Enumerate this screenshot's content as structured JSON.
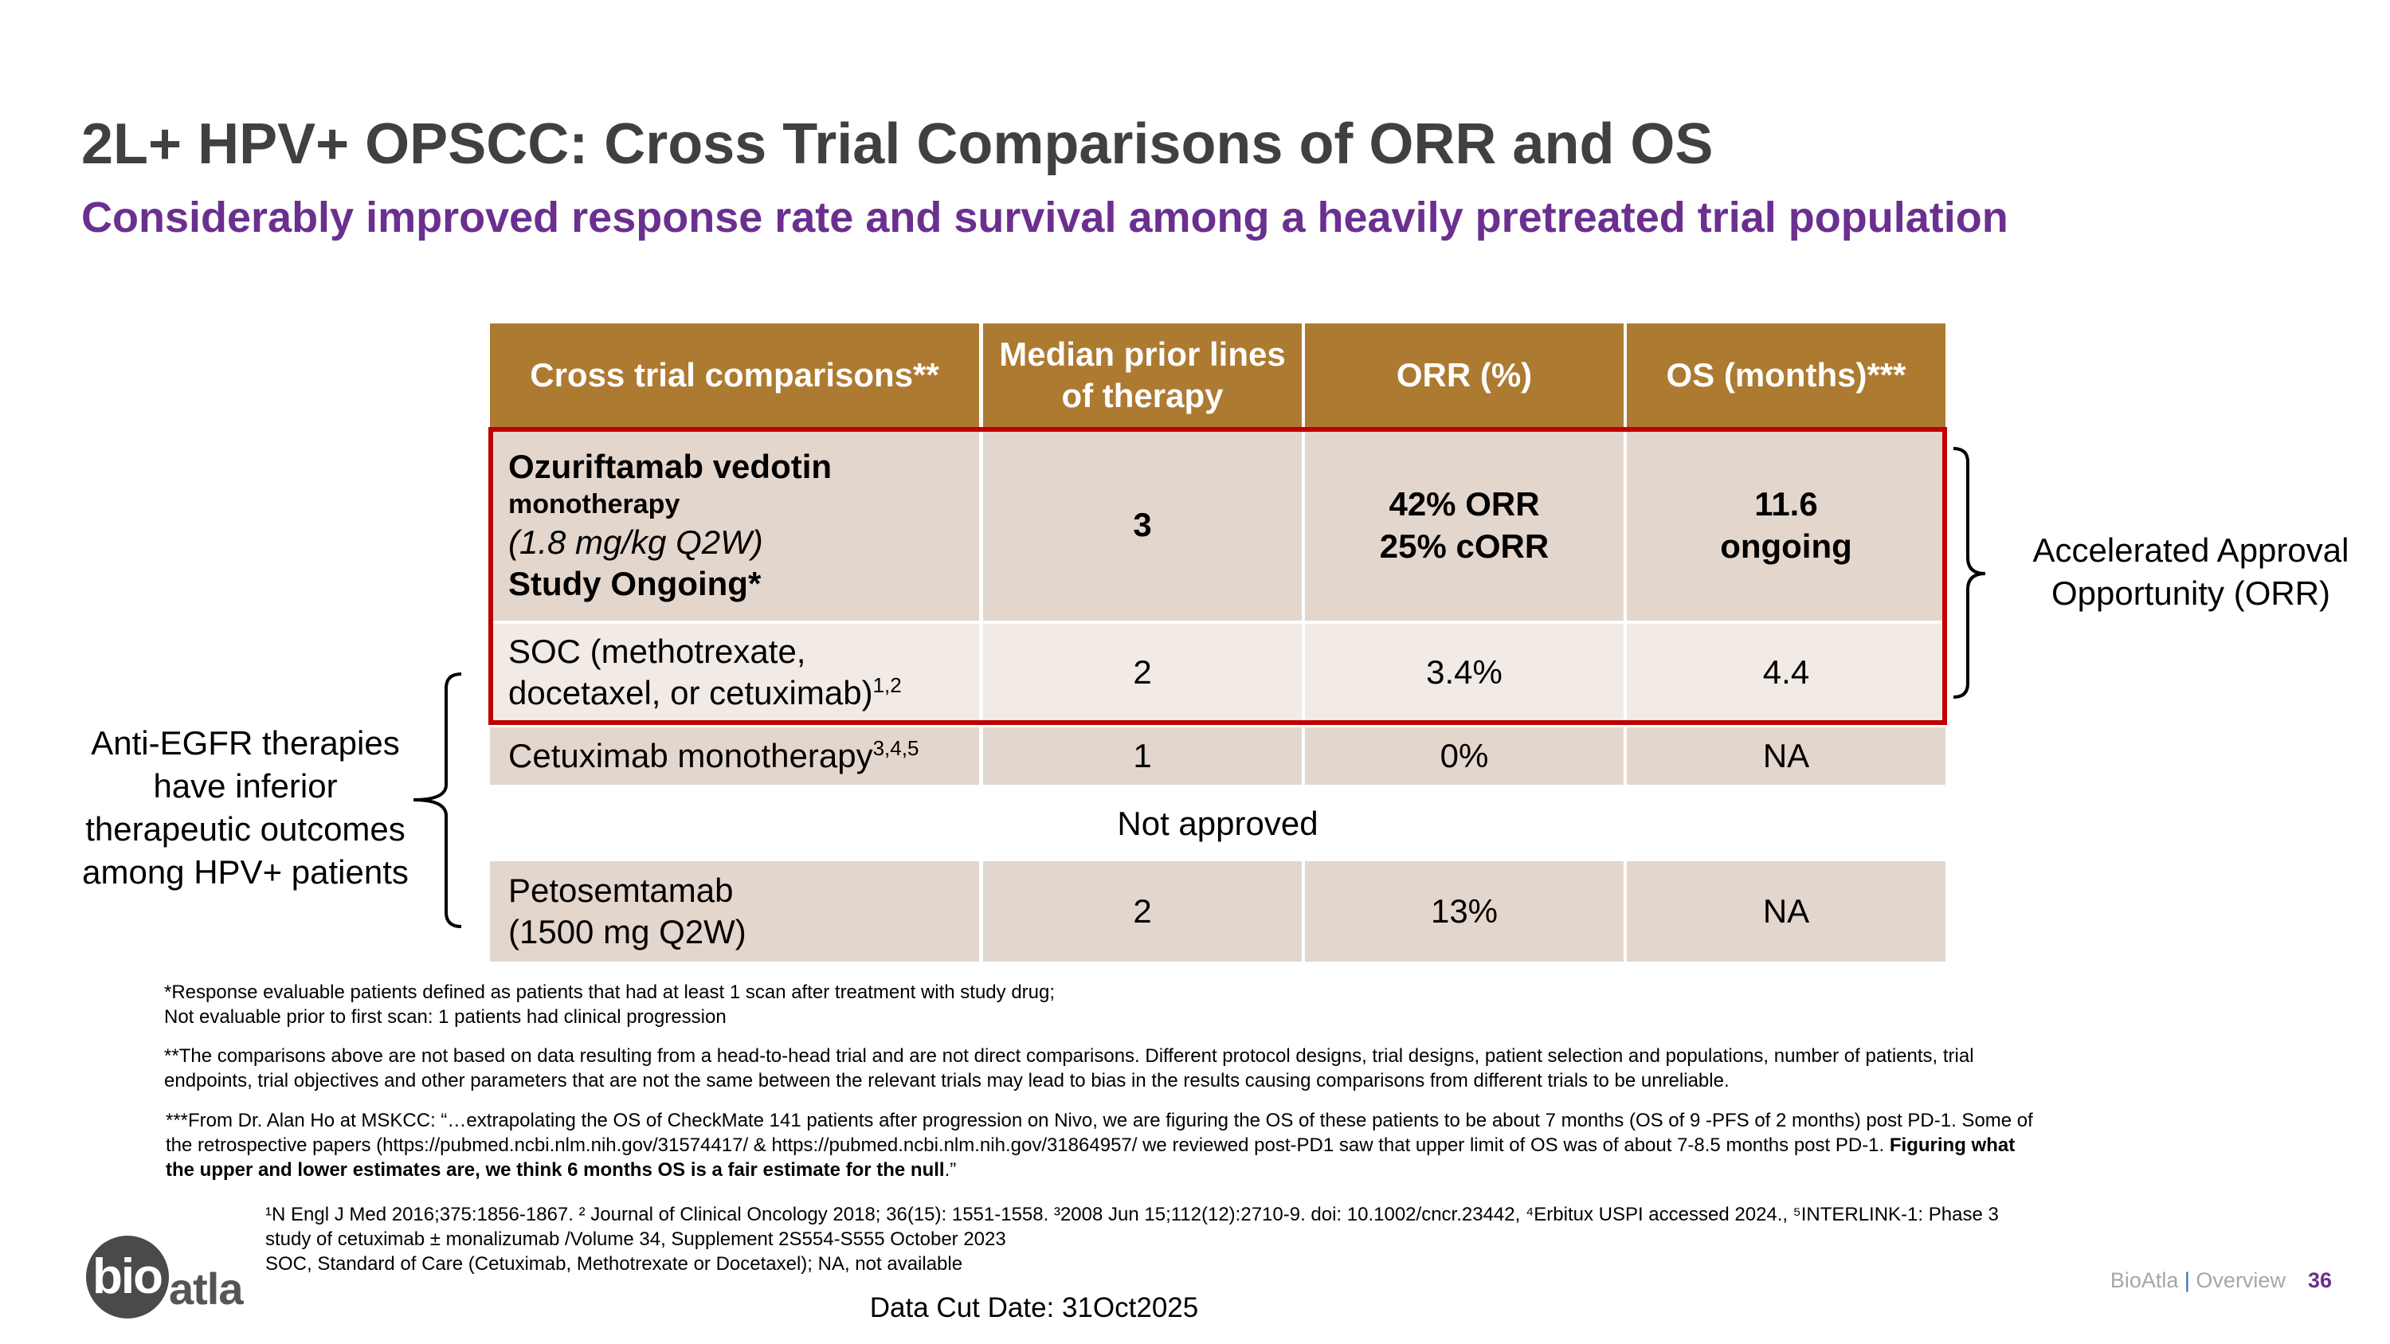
{
  "header": {
    "title": "2L+ HPV+ OPSCC: Cross Trial Comparisons of ORR and OS",
    "subtitle": "Considerably improved response rate and survival among a heavily pretreated trial population"
  },
  "table": {
    "columns": [
      [
        "Cross trial comparisons**"
      ],
      [
        "Median prior lines",
        "of therapy"
      ],
      [
        "ORR (%)"
      ],
      [
        "OS (months)***"
      ]
    ],
    "rows": [
      {
        "cells": [
          [
            "Ozuriftamab vedotin",
            "monotherapy",
            "(1.8 mg/kg Q2W)",
            "Study Ongoing*"
          ],
          [
            "3"
          ],
          [
            "42% ORR",
            "25% cORR"
          ],
          [
            "11.6",
            "ongoing"
          ]
        ]
      },
      {
        "cells": [
          [
            "SOC (methotrexate,",
            "docetaxel, or cetuximab)"
          ],
          [
            "2"
          ],
          [
            "3.4%"
          ],
          [
            "4.4"
          ]
        ],
        "sup": "1,2"
      },
      {
        "cells": [
          [
            "Cetuximab monotherapy"
          ],
          [
            "1"
          ],
          [
            "0%"
          ],
          [
            "NA"
          ]
        ],
        "sup": "3,4,5"
      },
      {
        "cells": [
          [
            "Petosemtamab",
            "(1500 mg Q2W)"
          ],
          [
            "2"
          ],
          [
            "13%"
          ],
          [
            "NA"
          ]
        ]
      }
    ],
    "divider": "Not approved"
  },
  "right_annotation": [
    "Accelerated Approval",
    "Opportunity (ORR)"
  ],
  "left_annotation": [
    "Anti-EGFR therapies",
    "have inferior",
    "therapeutic outcomes",
    "among HPV+ patients"
  ],
  "footnotes": {
    "note1": [
      "*Response evaluable patients defined as patients that had at least 1 scan after treatment with study drug;",
      "Not evaluable prior to first scan: 1 patients had clinical progression"
    ],
    "note2": "**The comparisons above are not based on data resulting from a head-to-head trial and are not direct comparisons. Different protocol designs, trial designs, patient selection and populations, number of patients, trial endpoints, trial objectives and other parameters that are not the same between the relevant trials may lead to bias in the results causing comparisons from different trials to be unreliable.",
    "note3": {
      "text": "***From Dr. Alan Ho at MSKCC: “…extrapolating the OS of CheckMate 141 patients after progression on Nivo, we are figuring the OS of these patients to be about 7 months (OS of 9 -PFS of 2 months) post PD-1. Some of the retrospective papers (https://pubmed.ncbi.nlm.nih.gov/31574417/ & https://pubmed.ncbi.nlm.nih.gov/31864957/ we reviewed post-PD1 saw that upper limit of OS was of about 7-8.5 months post PD-1. ",
      "bold": "Figuring what the upper and lower estimates are, we think 6 months OS is a fair estimate for the null",
      "end": ".”"
    },
    "references": "¹N Engl J Med 2016;375:1856-1867. ² Journal of Clinical Oncology 2018; 36(15): 1551-1558. ³2008 Jun 15;112(12):2710-9. doi: 10.1002/cncr.23442, ⁴Erbitux USPI accessed 2024., ⁵INTERLINK-1: Phase 3 study of cetuximab ± monalizumab /Volume 34, Supplement 2S554-S555 October 2023",
    "abbreviations": "SOC, Standard of Care (Cetuximab, Methotrexate or Docetaxel); NA, not available"
  },
  "logo": [
    "bio",
    "atla"
  ],
  "footer": {
    "company": "BioAtla",
    "separator": "|",
    "section": "Overview",
    "page": "36",
    "data_cut": "Data Cut Date: 31Oct2025"
  }
}
